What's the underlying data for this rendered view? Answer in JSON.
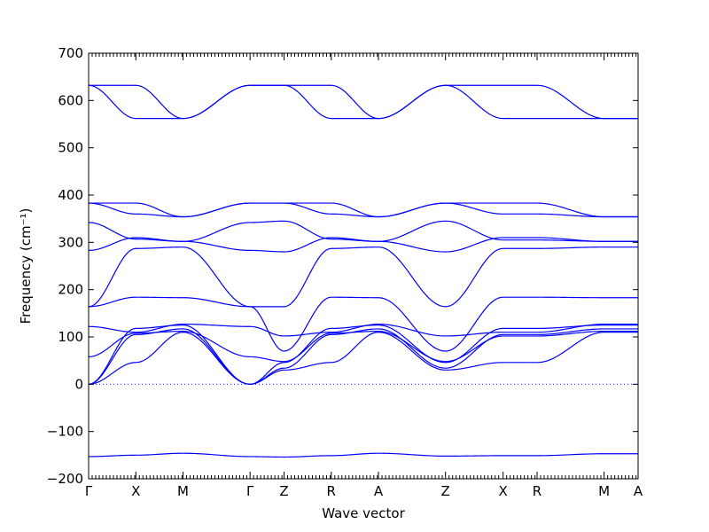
{
  "chart_data": {
    "type": "line",
    "xlabel": "Wave vector",
    "ylabel": "Frequency (cm⁻¹)",
    "ylim": [
      -200,
      700
    ],
    "yticks": [
      -200,
      -100,
      0,
      100,
      200,
      300,
      400,
      500,
      600,
      700
    ],
    "path_points": [
      {
        "label": "Γ",
        "x": 0.0
      },
      {
        "label": "X",
        "x": 0.5
      },
      {
        "label": "M",
        "x": 1.0
      },
      {
        "label": "Γ",
        "x": 1.71
      },
      {
        "label": "Z",
        "x": 2.07
      },
      {
        "label": "R",
        "x": 2.57
      },
      {
        "label": "A",
        "x": 3.07
      },
      {
        "label": "Z",
        "x": 3.78
      },
      {
        "label": "X",
        "x": 4.39
      },
      {
        "label": "R",
        "x": 4.75
      },
      {
        "label": "M",
        "x": 5.46
      },
      {
        "label": "A",
        "x": 5.82
      }
    ],
    "zero_line": true,
    "series": [
      {
        "x": [
          0.0,
          0.5,
          1.0,
          1.71,
          2.07,
          2.57,
          3.07,
          3.78,
          4.39,
          4.75,
          5.46,
          5.82
        ],
        "y": [
          -153,
          -150,
          -146,
          -153,
          -154,
          -151,
          -146,
          -152,
          -151,
          -151,
          -147,
          -147
        ]
      },
      {
        "x": [
          0.0,
          0.5,
          1.0,
          1.71,
          2.07,
          2.57,
          3.07,
          3.78,
          4.39,
          4.75,
          5.46,
          5.82
        ],
        "y": [
          0,
          46,
          110,
          0,
          30,
          46,
          110,
          30,
          46,
          46,
          110,
          110
        ]
      },
      {
        "x": [
          0.0,
          0.5,
          1.0,
          1.71,
          2.07,
          2.57,
          3.07,
          3.78,
          4.39,
          4.75,
          5.46,
          5.82
        ],
        "y": [
          0,
          105,
          117,
          0,
          34,
          105,
          117,
          34,
          105,
          105,
          117,
          117
        ]
      },
      {
        "x": [
          0.0,
          0.5,
          1.0,
          1.71,
          2.07,
          2.57,
          3.07,
          3.78,
          4.39,
          4.75,
          5.46,
          5.82
        ],
        "y": [
          0,
          118,
          125,
          0,
          46,
          118,
          125,
          46,
          118,
          118,
          125,
          125
        ]
      },
      {
        "x": [
          0.0,
          0.5,
          1.0,
          1.71,
          2.07,
          2.57,
          3.07,
          3.78,
          4.39,
          4.75,
          5.46,
          5.82
        ],
        "y": [
          58,
          108,
          112,
          58,
          48,
          108,
          112,
          48,
          102,
          102,
          112,
          112
        ]
      },
      {
        "x": [
          0.0,
          0.5,
          1.0,
          1.71,
          2.07,
          2.57,
          3.07,
          3.78,
          4.39,
          4.75,
          5.46,
          5.82
        ],
        "y": [
          122,
          110,
          127,
          122,
          102,
          110,
          127,
          102,
          110,
          110,
          127,
          127
        ]
      },
      {
        "x": [
          0.0,
          0.5,
          1.0,
          1.71,
          2.07,
          2.57,
          3.07,
          3.78,
          4.39,
          4.75,
          5.46,
          5.82
        ],
        "y": [
          164,
          184,
          183,
          164,
          70,
          184,
          183,
          70,
          184,
          184,
          183,
          183
        ]
      },
      {
        "x": [
          0.0,
          0.5,
          1.0,
          1.71,
          2.07,
          2.57,
          3.07,
          3.78,
          4.39,
          4.75,
          5.46,
          5.82
        ],
        "y": [
          164,
          287,
          290,
          164,
          164,
          287,
          290,
          164,
          287,
          287,
          290,
          290
        ]
      },
      {
        "x": [
          0.0,
          0.5,
          1.0,
          1.71,
          2.07,
          2.57,
          3.07,
          3.78,
          4.39,
          4.75,
          5.46,
          5.82
        ],
        "y": [
          283,
          310,
          302,
          283,
          280,
          310,
          302,
          280,
          310,
          310,
          302,
          302
        ]
      },
      {
        "x": [
          0.0,
          0.5,
          1.0,
          1.71,
          2.07,
          2.57,
          3.07,
          3.78,
          4.39,
          4.75,
          5.46,
          5.82
        ],
        "y": [
          342,
          307,
          302,
          342,
          345,
          307,
          302,
          345,
          305,
          305,
          302,
          302
        ]
      },
      {
        "x": [
          0.0,
          0.5,
          1.0,
          1.71,
          2.07,
          2.57,
          3.07,
          3.78,
          4.39,
          4.75,
          5.46,
          5.82
        ],
        "y": [
          383,
          360,
          354,
          383,
          383,
          360,
          354,
          383,
          360,
          360,
          354,
          354
        ]
      },
      {
        "x": [
          0.0,
          0.5,
          1.0,
          1.71,
          2.07,
          2.57,
          3.07,
          3.78,
          4.39,
          4.75,
          5.46,
          5.82
        ],
        "y": [
          383,
          383,
          354,
          383,
          383,
          383,
          354,
          383,
          383,
          383,
          354,
          354
        ]
      },
      {
        "x": [
          0.0,
          0.5,
          1.0,
          1.71,
          2.07,
          2.57,
          3.07,
          3.78,
          4.39,
          4.75,
          5.46,
          5.82
        ],
        "y": [
          632,
          562,
          562,
          632,
          632,
          562,
          562,
          632,
          562,
          562,
          562,
          562
        ]
      },
      {
        "x": [
          0.0,
          0.5,
          1.0,
          1.71,
          2.07,
          2.57,
          3.07,
          3.78,
          4.39,
          4.75,
          5.46,
          5.82
        ],
        "y": [
          632,
          632,
          562,
          632,
          632,
          632,
          562,
          632,
          632,
          632,
          562,
          562
        ]
      }
    ]
  },
  "colors": {
    "band": "#0000ff",
    "axes": "#000000"
  }
}
